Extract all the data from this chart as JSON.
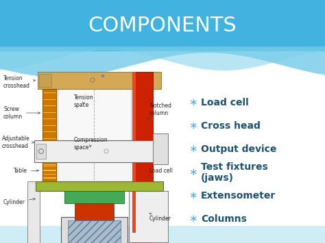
{
  "title": "COMPONENTS",
  "title_color": "#FFFFFF",
  "title_fontsize": 22,
  "bullet_items": [
    "Load cell",
    "Cross head",
    "Output device",
    "Test fixtures\n(jaws)",
    "Extensometer",
    "Columns"
  ],
  "bullet_color": "#1A5276",
  "bullet_fontsize": 10,
  "bullet_star_color": "#5DADE2",
  "bg_blue_top": "#3AACE0",
  "bg_blue_bottom": "#85CEE8",
  "wave_color": "#FFFFFF",
  "diagram_bg": "#FFFFFF"
}
